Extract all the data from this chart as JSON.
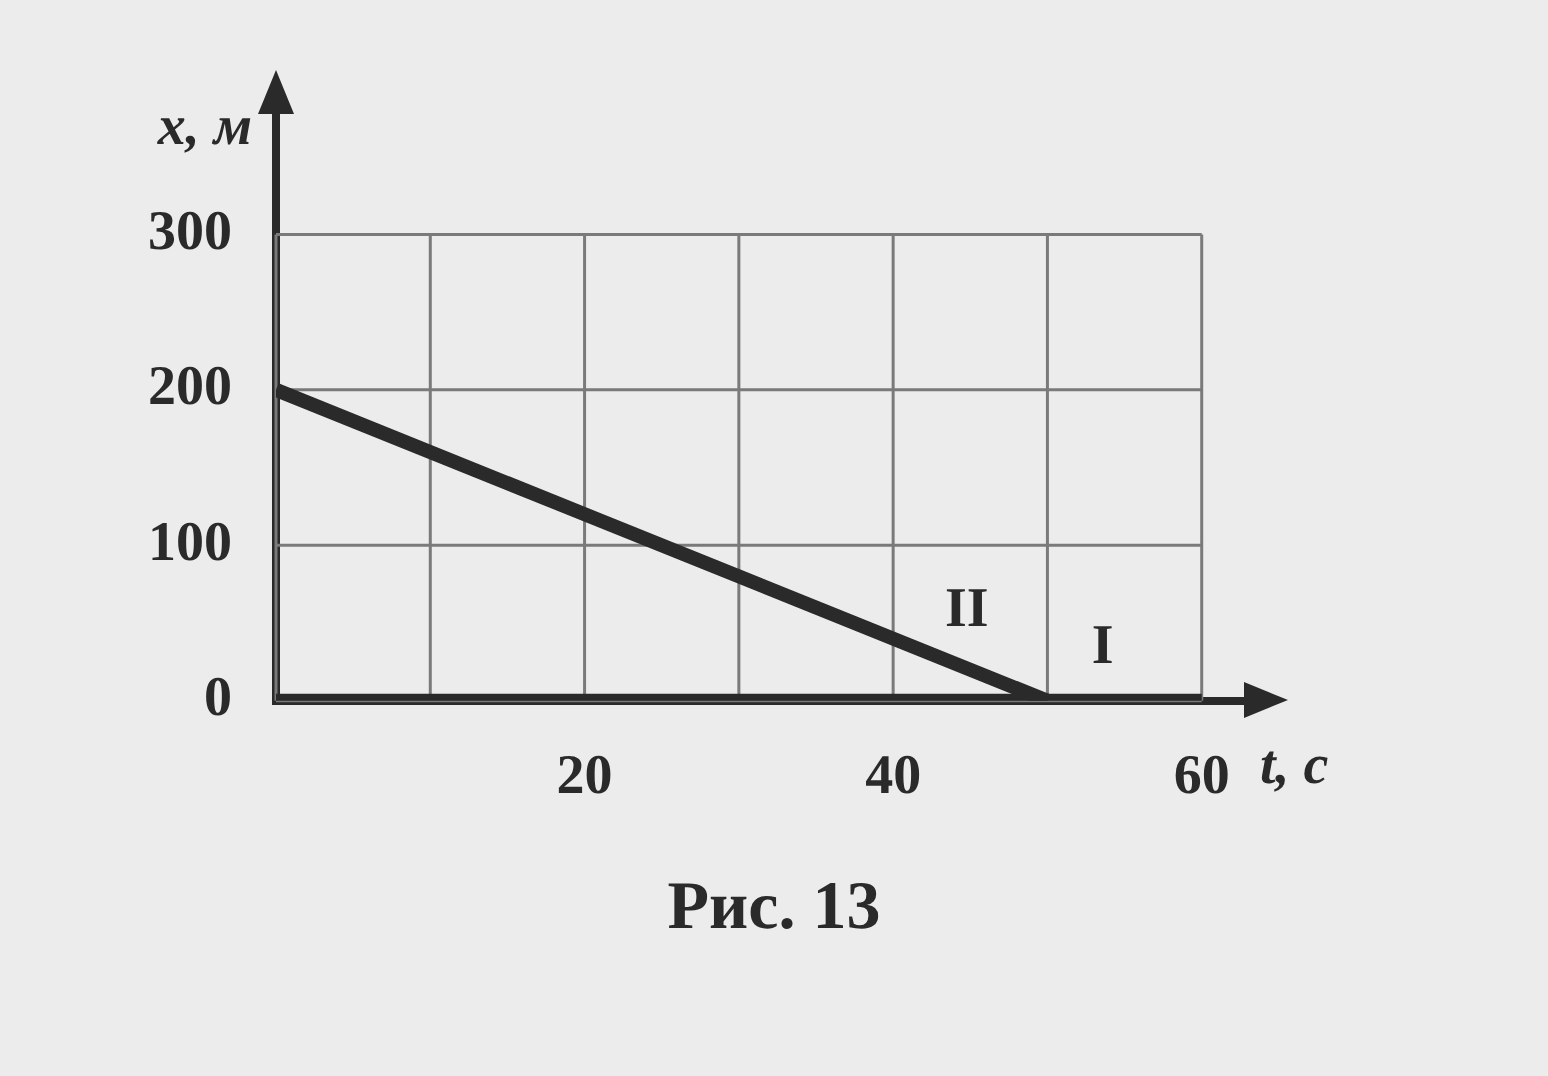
{
  "chart_data": {
    "type": "line",
    "xlabel": "t, с",
    "ylabel": "x, м",
    "series": [
      {
        "name": "I",
        "color": "#2a2a2a",
        "x": [
          0,
          60
        ],
        "values": [
          0,
          0
        ]
      },
      {
        "name": "II",
        "color": "#2a2a2a",
        "x": [
          0,
          50
        ],
        "values": [
          200,
          0
        ]
      }
    ],
    "xlim": [
      0,
      63
    ],
    "ylim": [
      0,
      380
    ],
    "xticks": [
      {
        "value": 0,
        "label": null
      },
      {
        "value": 10,
        "label": null
      },
      20,
      {
        "value": 30,
        "label": null
      },
      40,
      {
        "value": 50,
        "label": null
      },
      60
    ],
    "yticks": [
      0,
      100,
      200,
      300
    ],
    "grid": true,
    "legend": false,
    "marker": "none",
    "line_style": "solid",
    "annotations": [
      "Рис. 13"
    ]
  }
}
